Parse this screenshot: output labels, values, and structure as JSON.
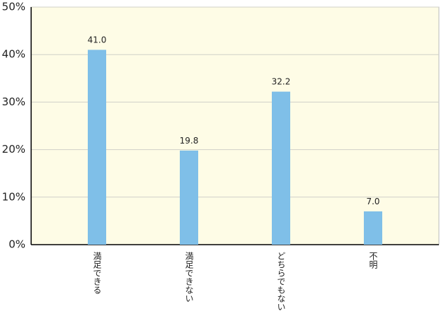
{
  "chart_data": {
    "type": "bar",
    "categories": [
      "満足できる",
      "満足できない",
      "どちらでもない",
      "不明"
    ],
    "values": [
      41.0,
      19.8,
      32.2,
      7.0
    ],
    "value_labels": [
      "41.0",
      "19.8",
      "32.2",
      "7.0"
    ],
    "color": "#7fbfe8",
    "ylim": [
      0,
      50
    ],
    "yticks": [
      {
        "value": 0,
        "label": "0%"
      },
      {
        "value": 10,
        "label": "10%"
      },
      {
        "value": 20,
        "label": "20%"
      },
      {
        "value": 30,
        "label": "30%"
      },
      {
        "value": 40,
        "label": "40%"
      },
      {
        "value": 50,
        "label": "50%"
      }
    ],
    "grid": true
  }
}
